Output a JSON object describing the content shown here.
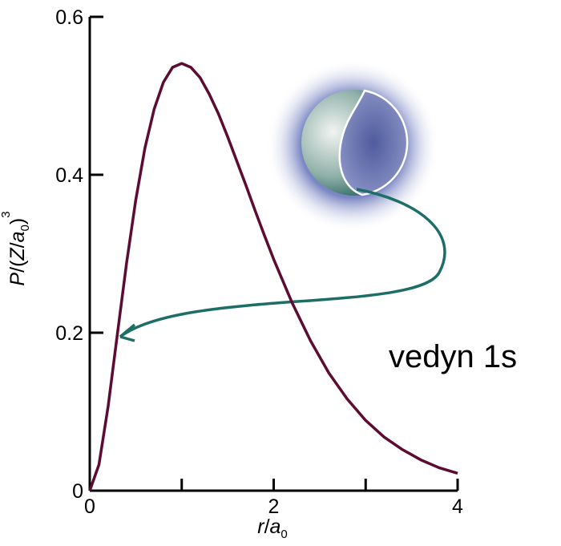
{
  "chart_data": {
    "type": "line",
    "ylabel_parts": [
      "P",
      "/(",
      "Z",
      "/",
      "a",
      "0",
      ")",
      "3"
    ],
    "xlabel_parts": [
      "r",
      "/",
      "a",
      "0"
    ],
    "annotation": "vedyn 1s",
    "x": [
      0,
      0.1,
      0.2,
      0.3,
      0.4,
      0.5,
      0.6,
      0.7,
      0.8,
      0.9,
      1.0,
      1.1,
      1.2,
      1.3,
      1.4,
      1.5,
      1.6,
      1.7,
      1.8,
      1.9,
      2.0,
      2.2,
      2.4,
      2.6,
      2.8,
      3.0,
      3.2,
      3.4,
      3.6,
      3.8,
      4.0
    ],
    "series": [
      {
        "color": "#5c0b33",
        "values": [
          0,
          0.033,
          0.107,
          0.198,
          0.288,
          0.368,
          0.434,
          0.483,
          0.517,
          0.536,
          0.541,
          0.536,
          0.523,
          0.502,
          0.477,
          0.448,
          0.417,
          0.386,
          0.354,
          0.323,
          0.293,
          0.238,
          0.19,
          0.149,
          0.116,
          0.089,
          0.068,
          0.052,
          0.039,
          0.029,
          0.022
        ]
      }
    ],
    "xlim": [
      0,
      4
    ],
    "xticks": [
      0,
      2,
      4
    ],
    "xminor_ticks": [
      1,
      3
    ],
    "ylim": [
      0,
      0.6
    ],
    "yticks": [
      0,
      0.2,
      0.4,
      0.6
    ]
  }
}
